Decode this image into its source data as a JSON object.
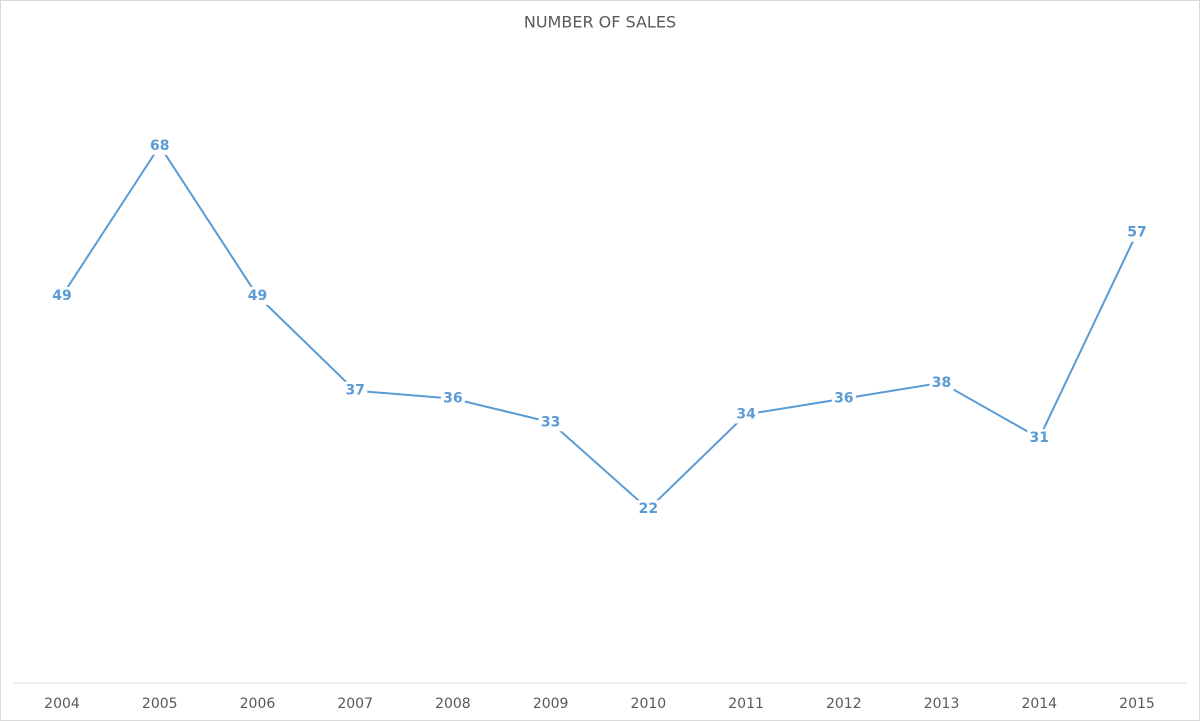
{
  "chart_data": {
    "type": "line",
    "title": "NUMBER OF SALES",
    "categories": [
      "2004",
      "2005",
      "2006",
      "2007",
      "2008",
      "2009",
      "2010",
      "2011",
      "2012",
      "2013",
      "2014",
      "2015"
    ],
    "values": [
      49,
      68,
      49,
      37,
      36,
      33,
      22,
      34,
      36,
      38,
      31,
      57
    ],
    "color": "#5b9bd5",
    "ylim": [
      0,
      80
    ],
    "grid": false
  }
}
